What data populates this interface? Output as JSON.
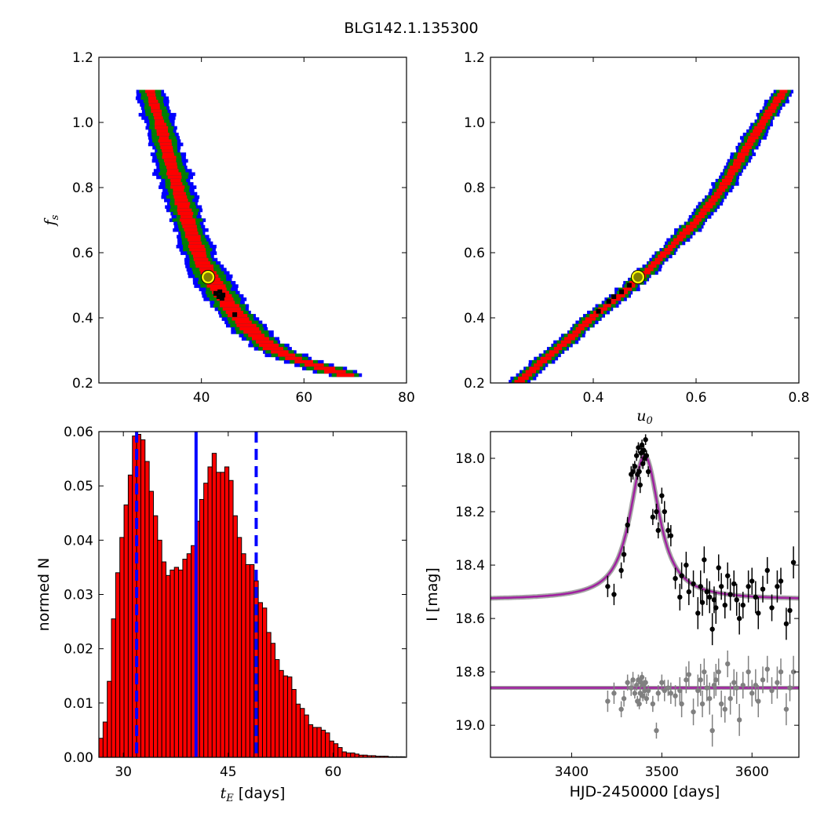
{
  "title": "BLG142.1.135300",
  "colors": {
    "sigma1": "#ff0000",
    "sigma2": "#008000",
    "sigma3": "#0000ff",
    "best": "#000000",
    "marker_face": "#808000",
    "marker_edge": "#ffff00",
    "hist_fill": "#ff0000",
    "hist_edge": "#000000",
    "median_line": "#0000ff",
    "model_line": "#a020a0",
    "data_points": "#000000",
    "residual_points": "#808080"
  },
  "chart_data": [
    {
      "id": "tE_vs_fs",
      "type": "heatmap",
      "xlabel": "",
      "ylabel_main": "f",
      "ylabel_sub": "s",
      "xlim": [
        20,
        80
      ],
      "ylim": [
        0.2,
        1.2
      ],
      "xticks": [
        40,
        60,
        80
      ],
      "yticks": [
        0.2,
        0.4,
        0.6,
        0.8,
        1.0,
        1.2
      ],
      "ridge": [
        [
          30,
          1.1
        ],
        [
          32,
          1.0
        ],
        [
          34,
          0.88
        ],
        [
          36,
          0.77
        ],
        [
          38,
          0.67
        ],
        [
          40,
          0.58
        ],
        [
          43,
          0.5
        ],
        [
          46,
          0.43
        ],
        [
          50,
          0.36
        ],
        [
          54,
          0.31
        ],
        [
          58,
          0.28
        ],
        [
          62,
          0.26
        ],
        [
          66,
          0.24
        ],
        [
          70,
          0.22
        ]
      ],
      "best_fit_marker": [
        41.3,
        0.525
      ],
      "best_samples": [
        [
          42.8,
          0.475
        ],
        [
          43.4,
          0.465
        ],
        [
          44.2,
          0.47
        ],
        [
          44.0,
          0.46
        ],
        [
          43.6,
          0.48
        ],
        [
          46.5,
          0.41
        ]
      ]
    },
    {
      "id": "u0_vs_fs",
      "type": "heatmap",
      "xlabel_main": "u",
      "xlabel_sub": "0",
      "ylabel": "",
      "xlim": [
        0.2,
        0.8
      ],
      "ylim": [
        0.2,
        1.2
      ],
      "xticks": [
        0.4,
        0.6,
        0.8
      ],
      "yticks": [
        0.2,
        0.4,
        0.6,
        0.8,
        1.0,
        1.2
      ],
      "ridge": [
        [
          0.25,
          0.2
        ],
        [
          0.3,
          0.27
        ],
        [
          0.35,
          0.335
        ],
        [
          0.4,
          0.41
        ],
        [
          0.45,
          0.47
        ],
        [
          0.5,
          0.54
        ],
        [
          0.55,
          0.62
        ],
        [
          0.6,
          0.7
        ],
        [
          0.65,
          0.8
        ],
        [
          0.7,
          0.93
        ],
        [
          0.74,
          1.03
        ],
        [
          0.77,
          1.1
        ]
      ],
      "best_fit_marker": [
        0.487,
        0.525
      ],
      "best_samples": [
        [
          0.43,
          0.45
        ],
        [
          0.44,
          0.465
        ],
        [
          0.455,
          0.48
        ],
        [
          0.47,
          0.5
        ],
        [
          0.48,
          0.52
        ],
        [
          0.41,
          0.42
        ]
      ]
    },
    {
      "id": "tE_histogram",
      "type": "bar",
      "xlabel_main": "t",
      "xlabel_sub": "E",
      "xlabel_suffix": " [days]",
      "ylabel": "normed N",
      "xlim": [
        26.5,
        70.5
      ],
      "ylim": [
        0,
        0.06
      ],
      "xticks": [
        30,
        45,
        60
      ],
      "yticks": [
        "0.00",
        "0.01",
        "0.02",
        "0.03",
        "0.04",
        "0.05",
        "0.06"
      ],
      "bin_start": 26.5,
      "bin_width": 0.6,
      "values": [
        0.0035,
        0.0065,
        0.014,
        0.0255,
        0.034,
        0.0405,
        0.0465,
        0.052,
        0.0592,
        0.0595,
        0.0585,
        0.0545,
        0.049,
        0.0445,
        0.04,
        0.036,
        0.0335,
        0.0345,
        0.035,
        0.0345,
        0.0365,
        0.0375,
        0.039,
        0.0435,
        0.0475,
        0.0505,
        0.0535,
        0.056,
        0.0525,
        0.0525,
        0.0535,
        0.051,
        0.0445,
        0.0405,
        0.0375,
        0.0355,
        0.0355,
        0.0325,
        0.0285,
        0.0275,
        0.023,
        0.021,
        0.018,
        0.016,
        0.015,
        0.0148,
        0.0125,
        0.0098,
        0.009,
        0.0078,
        0.006,
        0.0055,
        0.0055,
        0.005,
        0.0045,
        0.003,
        0.0025,
        0.0018,
        0.001,
        0.0008,
        0.0008,
        0.0006,
        0.0004,
        0.0004,
        0.0003,
        0.0003,
        0.0002,
        0.0002,
        0.0002,
        0.0001,
        0.0001,
        0.0001,
        0.0001
      ],
      "median": 40.4,
      "lower_bound": 31.9,
      "upper_bound": 49.0
    },
    {
      "id": "light_curve",
      "type": "scatter",
      "xlabel": "HJD-2450000 [days]",
      "ylabel": "I [mag]",
      "xlim": [
        3310,
        3652
      ],
      "ylim": [
        19.12,
        17.9
      ],
      "xticks": [
        3400,
        3500,
        3600
      ],
      "yticks": [
        "18.0",
        "18.2",
        "18.4",
        "18.6",
        "18.8",
        "19.0"
      ],
      "model": {
        "t0": 3481,
        "baseline": 18.53,
        "peak": 17.99,
        "width": 14
      },
      "residual_baseline": 18.86,
      "data": [
        [
          3440,
          18.48,
          0.04
        ],
        [
          3447,
          18.51,
          0.04
        ],
        [
          3455,
          18.42,
          0.03
        ],
        [
          3458,
          18.36,
          0.03
        ],
        [
          3462,
          18.25,
          0.03
        ],
        [
          3466,
          18.06,
          0.03
        ],
        [
          3468,
          18.05,
          0.03
        ],
        [
          3470,
          18.03,
          0.02
        ],
        [
          3472,
          17.99,
          0.02
        ],
        [
          3473,
          18.06,
          0.02
        ],
        [
          3474,
          17.96,
          0.02
        ],
        [
          3475,
          18.05,
          0.02
        ],
        [
          3476,
          18.1,
          0.03
        ],
        [
          3477,
          17.98,
          0.02
        ],
        [
          3478,
          17.95,
          0.02
        ],
        [
          3479,
          18.02,
          0.02
        ],
        [
          3480,
          17.97,
          0.02
        ],
        [
          3481,
          18.0,
          0.02
        ],
        [
          3482,
          17.93,
          0.02
        ],
        [
          3483,
          17.99,
          0.02
        ],
        [
          3485,
          18.05,
          0.02
        ],
        [
          3490,
          18.22,
          0.03
        ],
        [
          3494,
          18.2,
          0.03
        ],
        [
          3496,
          18.27,
          0.03
        ],
        [
          3500,
          18.14,
          0.03
        ],
        [
          3503,
          18.2,
          0.04
        ],
        [
          3507,
          18.27,
          0.03
        ],
        [
          3510,
          18.29,
          0.04
        ],
        [
          3515,
          18.45,
          0.04
        ],
        [
          3520,
          18.52,
          0.05
        ],
        [
          3522,
          18.44,
          0.05
        ],
        [
          3527,
          18.4,
          0.05
        ],
        [
          3530,
          18.5,
          0.05
        ],
        [
          3535,
          18.47,
          0.05
        ],
        [
          3540,
          18.58,
          0.06
        ],
        [
          3543,
          18.48,
          0.06
        ],
        [
          3545,
          18.54,
          0.05
        ],
        [
          3547,
          18.38,
          0.05
        ],
        [
          3550,
          18.5,
          0.05
        ],
        [
          3553,
          18.52,
          0.06
        ],
        [
          3556,
          18.64,
          0.06
        ],
        [
          3558,
          18.53,
          0.05
        ],
        [
          3560,
          18.56,
          0.06
        ],
        [
          3563,
          18.41,
          0.05
        ],
        [
          3566,
          18.48,
          0.05
        ],
        [
          3570,
          18.55,
          0.05
        ],
        [
          3573,
          18.44,
          0.05
        ],
        [
          3576,
          18.51,
          0.06
        ],
        [
          3580,
          18.47,
          0.05
        ],
        [
          3583,
          18.53,
          0.06
        ],
        [
          3586,
          18.6,
          0.06
        ],
        [
          3590,
          18.55,
          0.05
        ],
        [
          3596,
          18.48,
          0.06
        ],
        [
          3600,
          18.46,
          0.05
        ],
        [
          3604,
          18.52,
          0.06
        ],
        [
          3607,
          18.58,
          0.06
        ],
        [
          3612,
          18.49,
          0.05
        ],
        [
          3617,
          18.42,
          0.05
        ],
        [
          3622,
          18.56,
          0.05
        ],
        [
          3628,
          18.48,
          0.06
        ],
        [
          3632,
          18.46,
          0.05
        ],
        [
          3638,
          18.62,
          0.06
        ],
        [
          3642,
          18.57,
          0.05
        ],
        [
          3646,
          18.39,
          0.06
        ]
      ],
      "residuals": [
        [
          3440,
          18.91,
          0.04
        ],
        [
          3447,
          18.88,
          0.04
        ],
        [
          3455,
          18.94,
          0.03
        ],
        [
          3458,
          18.9,
          0.03
        ],
        [
          3462,
          18.84,
          0.03
        ],
        [
          3466,
          18.86,
          0.03
        ],
        [
          3468,
          18.83,
          0.03
        ],
        [
          3470,
          18.88,
          0.02
        ],
        [
          3472,
          18.85,
          0.02
        ],
        [
          3473,
          18.91,
          0.02
        ],
        [
          3474,
          18.83,
          0.02
        ],
        [
          3475,
          18.92,
          0.02
        ],
        [
          3476,
          18.88,
          0.03
        ],
        [
          3477,
          18.84,
          0.02
        ],
        [
          3478,
          18.82,
          0.02
        ],
        [
          3479,
          18.89,
          0.02
        ],
        [
          3480,
          18.85,
          0.02
        ],
        [
          3481,
          18.87,
          0.02
        ],
        [
          3482,
          18.84,
          0.02
        ],
        [
          3483,
          18.9,
          0.02
        ],
        [
          3485,
          18.87,
          0.02
        ],
        [
          3490,
          18.92,
          0.03
        ],
        [
          3494,
          19.02,
          0.03
        ],
        [
          3496,
          18.88,
          0.03
        ],
        [
          3500,
          18.84,
          0.03
        ],
        [
          3503,
          18.87,
          0.04
        ],
        [
          3507,
          18.86,
          0.03
        ],
        [
          3510,
          18.88,
          0.04
        ],
        [
          3515,
          18.89,
          0.04
        ],
        [
          3520,
          18.87,
          0.05
        ],
        [
          3522,
          18.92,
          0.05
        ],
        [
          3527,
          18.83,
          0.05
        ],
        [
          3530,
          18.81,
          0.05
        ],
        [
          3535,
          18.95,
          0.05
        ],
        [
          3540,
          18.87,
          0.06
        ],
        [
          3543,
          18.83,
          0.06
        ],
        [
          3545,
          18.92,
          0.05
        ],
        [
          3547,
          18.8,
          0.05
        ],
        [
          3550,
          18.86,
          0.05
        ],
        [
          3553,
          18.9,
          0.06
        ],
        [
          3556,
          19.02,
          0.06
        ],
        [
          3558,
          18.85,
          0.05
        ],
        [
          3560,
          18.83,
          0.06
        ],
        [
          3563,
          18.8,
          0.05
        ],
        [
          3566,
          18.92,
          0.05
        ],
        [
          3570,
          18.94,
          0.05
        ],
        [
          3573,
          18.77,
          0.05
        ],
        [
          3576,
          18.9,
          0.06
        ],
        [
          3580,
          18.84,
          0.05
        ],
        [
          3583,
          18.86,
          0.06
        ],
        [
          3586,
          18.98,
          0.06
        ],
        [
          3590,
          18.85,
          0.05
        ],
        [
          3596,
          18.8,
          0.06
        ],
        [
          3600,
          18.88,
          0.05
        ],
        [
          3604,
          18.85,
          0.06
        ],
        [
          3607,
          18.91,
          0.06
        ],
        [
          3612,
          18.83,
          0.05
        ],
        [
          3617,
          18.79,
          0.05
        ],
        [
          3622,
          18.87,
          0.05
        ],
        [
          3628,
          18.84,
          0.06
        ],
        [
          3632,
          18.8,
          0.05
        ],
        [
          3638,
          18.94,
          0.06
        ],
        [
          3642,
          18.86,
          0.05
        ],
        [
          3646,
          18.8,
          0.06
        ]
      ]
    }
  ]
}
